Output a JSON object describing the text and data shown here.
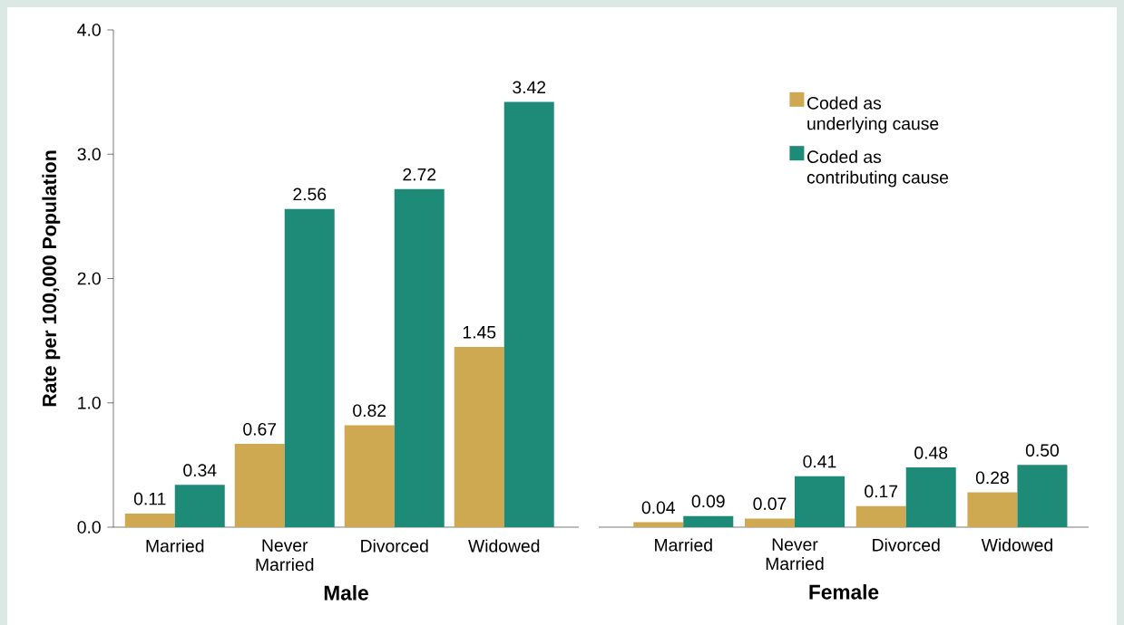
{
  "chart_data": [
    {
      "type": "bar",
      "xlabel": "Male",
      "ylabel": "Rate per 100,000 Population",
      "categories": [
        "Married",
        "Never Married",
        "Divorced",
        "Widowed"
      ],
      "series": [
        {
          "color": "#cfa852",
          "values": [
            0.11,
            0.67,
            0.82,
            1.45
          ],
          "value_labels": [
            "0.11",
            "0.67",
            "0.82",
            "1.45"
          ]
        },
        {
          "color": "#1e8a78",
          "values": [
            0.34,
            2.56,
            2.72,
            3.42
          ],
          "value_labels": [
            "0.34",
            "2.56",
            "2.72",
            "3.42"
          ]
        }
      ],
      "ylim": [
        0,
        4
      ],
      "yticks": [
        {
          "value": 0,
          "label": "0.0"
        },
        {
          "value": 1,
          "label": "1.0"
        },
        {
          "value": 2,
          "label": "2.0"
        },
        {
          "value": 3,
          "label": "3.0"
        },
        {
          "value": 4,
          "label": "4.0"
        }
      ]
    },
    {
      "type": "bar",
      "xlabel": "Female",
      "categories": [
        "Married",
        "Never Married",
        "Divorced",
        "Widowed"
      ],
      "series": [
        {
          "name": "Coded as underlying cause",
          "color": "#cfa852",
          "values": [
            0.04,
            0.07,
            0.17,
            0.28
          ],
          "value_labels": [
            "0.04",
            "0.07",
            "0.17",
            "0.28"
          ]
        },
        {
          "name": "Coded as contributing cause",
          "color": "#1e8a78",
          "values": [
            0.09,
            0.41,
            0.48,
            0.5
          ],
          "value_labels": [
            "0.09",
            "0.41",
            "0.48",
            "0.50"
          ]
        }
      ],
      "ylim": [
        0,
        4
      ],
      "legend": "top",
      "tick_labels": "x"
    }
  ]
}
